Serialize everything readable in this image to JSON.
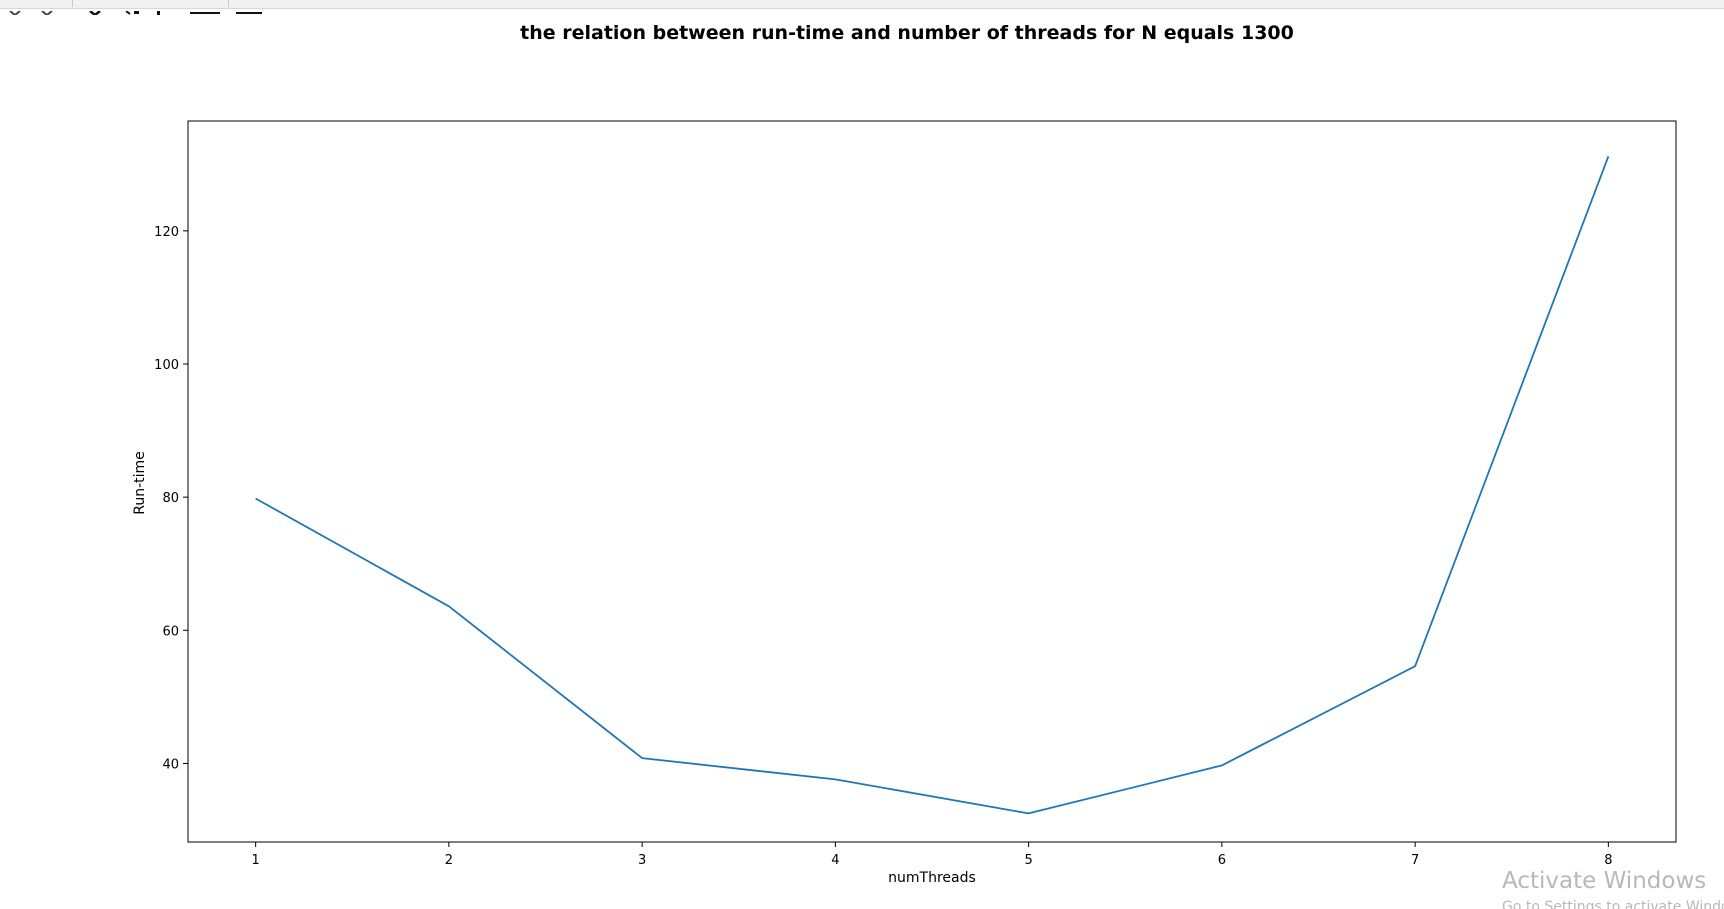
{
  "toolbar": {
    "icons": [
      "back-arrow-icon",
      "forward-arrow-icon",
      "pan-icon",
      "zoom-icon",
      "subplots-icon",
      "save-icon"
    ]
  },
  "chart_data": {
    "type": "line",
    "title": "the relation between run-time and number of threads for N equals 1300",
    "xlabel": "numThreads",
    "ylabel": "Run-time",
    "x": [
      1,
      2,
      3,
      4,
      5,
      6,
      7,
      8
    ],
    "series": [
      {
        "values": [
          79.8,
          63.6,
          40.8,
          37.6,
          32.5,
          39.7,
          54.6,
          131.2
        ],
        "color": "#1f77b4"
      }
    ],
    "xticks": [
      "1",
      "2",
      "3",
      "4",
      "5",
      "6",
      "7",
      "8"
    ],
    "yticks": [
      "40",
      "60",
      "80",
      "100",
      "120"
    ],
    "xlim": [
      0.65,
      8.35
    ],
    "ylim": [
      28.2,
      136.5
    ],
    "grid": false
  },
  "watermark": {
    "title": "Activate Windows",
    "subtitle": "Go to Settings to activate Windows."
  }
}
